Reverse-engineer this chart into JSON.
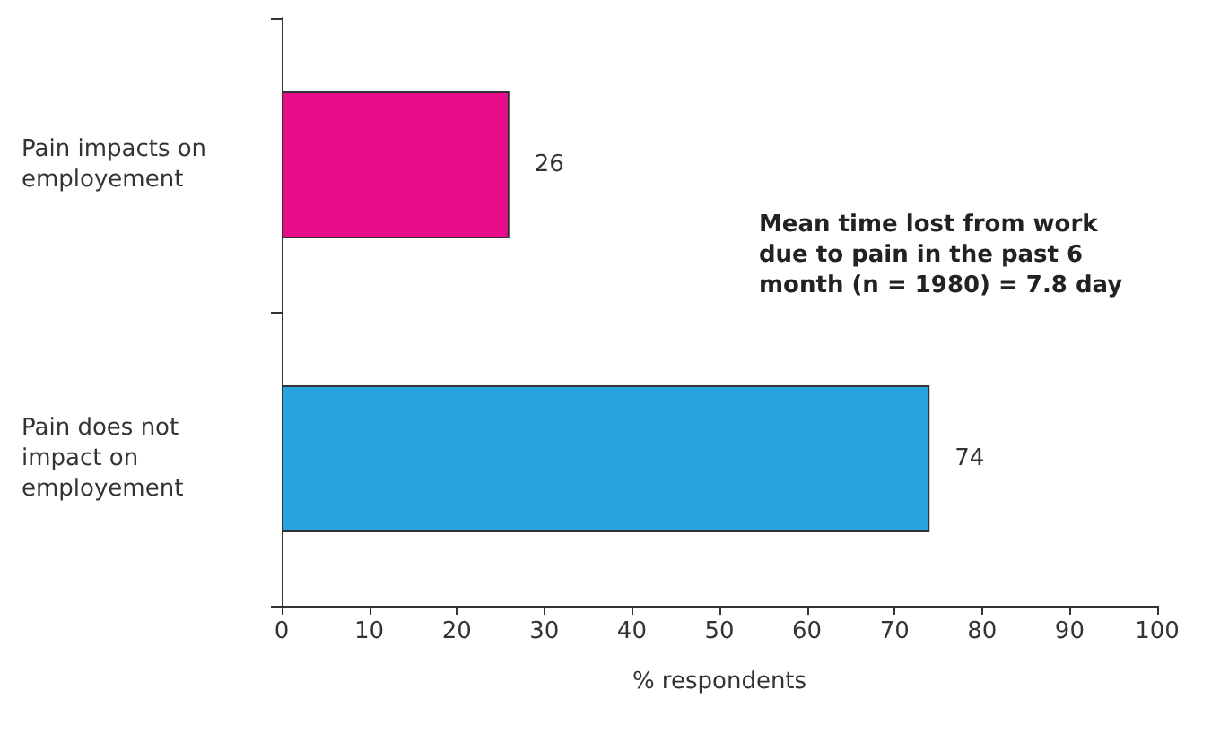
{
  "chart_data": {
    "type": "bar",
    "orientation": "horizontal",
    "categories": [
      "Pain impacts on employement",
      "Pain does not impact on employement"
    ],
    "values": [
      26,
      74
    ],
    "colors": [
      "#e90c8b",
      "#29a3dd"
    ],
    "xlim": [
      0,
      100
    ],
    "xticks": [
      0,
      10,
      20,
      30,
      40,
      50,
      60,
      70,
      80,
      90,
      100
    ],
    "xlabel": "% respondents",
    "data_labels": true,
    "grid": false,
    "annotations": [
      "Mean time lost from work due to pain in the past 6 month (n = 1980) = 7.8 day"
    ]
  }
}
